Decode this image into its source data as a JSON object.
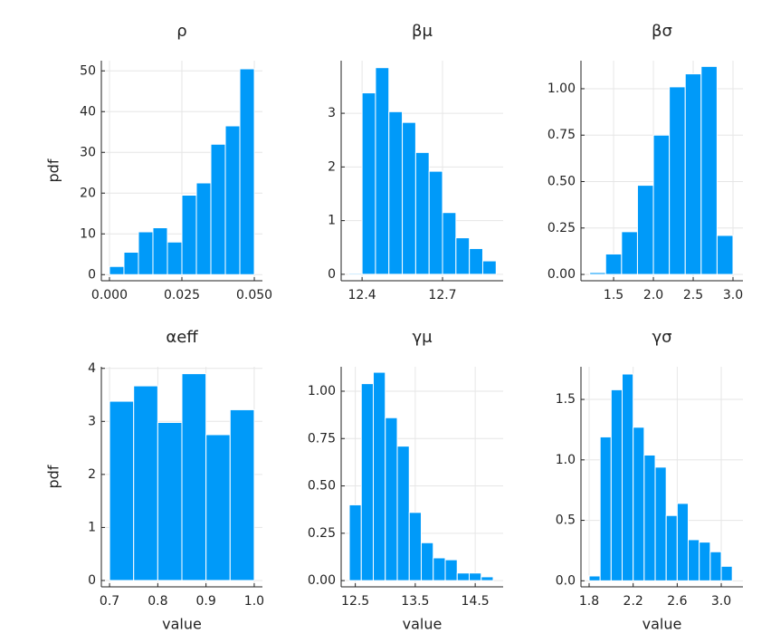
{
  "chart_data": [
    {
      "type": "histogram",
      "title": "ρ",
      "ylabel": "pdf",
      "color": "#009af9",
      "grid": true,
      "bins": [
        0.0,
        0.005,
        0.01,
        0.015,
        0.02,
        0.025,
        0.03,
        0.035,
        0.04,
        0.045,
        0.05
      ],
      "values": [
        2,
        5.5,
        10.5,
        11.5,
        8,
        19.5,
        22.5,
        32,
        36.5,
        50.5
      ],
      "xlim": [
        -0.0028,
        0.0528
      ],
      "ylim": [
        -1.5,
        52.5
      ],
      "xticks": [
        {
          "value": 0,
          "label": "0.000"
        },
        {
          "value": 0.025,
          "label": "0.025"
        },
        {
          "value": 0.05,
          "label": "0.050"
        }
      ],
      "yticks": [
        0,
        10,
        20,
        30,
        40,
        50
      ]
    },
    {
      "type": "histogram",
      "title": "βμ",
      "color": "#009af9",
      "grid": true,
      "bins": [
        12.35,
        12.4,
        12.45,
        12.5,
        12.55,
        12.6,
        12.65,
        12.7,
        12.75,
        12.8,
        12.85,
        12.9
      ],
      "values": [
        0.02,
        3.38,
        3.85,
        3.03,
        2.83,
        2.27,
        1.92,
        1.15,
        0.68,
        0.48,
        0.25,
        0.02
      ],
      "xlim": [
        12.322,
        12.926
      ],
      "ylim": [
        -0.12,
        3.98
      ],
      "xticks": [
        12.4,
        12.7
      ],
      "yticks": [
        0,
        1,
        2,
        3
      ]
    },
    {
      "type": "histogram",
      "title": "βσ",
      "color": "#009af9",
      "grid": true,
      "bins": [
        1.2,
        1.4,
        1.6,
        1.8,
        2.0,
        2.2,
        2.4,
        2.6,
        2.8,
        3.0
      ],
      "values": [
        0.01,
        0.11,
        0.23,
        0.48,
        0.75,
        1.01,
        1.08,
        1.12,
        0.21
      ],
      "xlim": [
        1.09,
        3.125
      ],
      "ylim": [
        -0.034,
        1.151
      ],
      "xticks": [
        1.5,
        {
          "value": 2,
          "label": "2.0"
        },
        2.5,
        {
          "value": 3,
          "label": "3.0"
        }
      ],
      "yticks": [
        {
          "value": 0,
          "label": "0.00"
        },
        0.25,
        {
          "value": 0.5,
          "label": "0.50"
        },
        0.75,
        {
          "value": 1,
          "label": "1.00"
        }
      ]
    },
    {
      "type": "histogram",
      "title": "αeff",
      "ylabel": "pdf",
      "xlabel": "value",
      "color": "#009af9",
      "grid": true,
      "bins": [
        0.7,
        0.75,
        0.8,
        0.85,
        0.9,
        0.95,
        1.0
      ],
      "values": [
        3.38,
        3.67,
        2.98,
        3.9,
        2.75,
        3.22
      ],
      "xlim": [
        0.683,
        1.017
      ],
      "ylim": [
        -0.12,
        4.03
      ],
      "xticks": [
        0.7,
        0.8,
        0.9,
        {
          "value": 1,
          "label": "1.0"
        }
      ],
      "yticks": [
        0,
        1,
        2,
        3,
        4
      ]
    },
    {
      "type": "histogram",
      "title": "γμ",
      "xlabel": "value",
      "color": "#009af9",
      "grid": true,
      "bins": [
        12.4,
        12.6,
        12.8,
        13.0,
        13.2,
        13.4,
        13.6,
        13.8,
        14.0,
        14.2,
        14.4,
        14.6,
        14.8
      ],
      "values": [
        0.4,
        1.04,
        1.1,
        0.86,
        0.71,
        0.36,
        0.2,
        0.12,
        0.11,
        0.04,
        0.04,
        0.02
      ],
      "xlim": [
        12.264,
        14.966
      ],
      "ylim": [
        -0.033,
        1.129
      ],
      "xticks": [
        12.5,
        13.5,
        14.5
      ],
      "yticks": [
        {
          "value": 0,
          "label": "0.00"
        },
        0.25,
        {
          "value": 0.5,
          "label": "0.50"
        },
        0.75,
        {
          "value": 1,
          "label": "1.00"
        }
      ]
    },
    {
      "type": "histogram",
      "title": "γσ",
      "xlabel": "value",
      "color": "#009af9",
      "grid": true,
      "bins": [
        1.8,
        1.9,
        2.0,
        2.1,
        2.2,
        2.3,
        2.4,
        2.5,
        2.6,
        2.7,
        2.8,
        2.9,
        3.0,
        3.1
      ],
      "values": [
        0.04,
        1.19,
        1.58,
        1.71,
        1.27,
        1.04,
        0.94,
        0.54,
        0.64,
        0.34,
        0.32,
        0.24,
        0.12
      ],
      "xlim": [
        1.726,
        3.197
      ],
      "ylim": [
        -0.05,
        1.77
      ],
      "xticks": [
        1.8,
        2.2,
        2.6,
        {
          "value": 3,
          "label": "3.0"
        }
      ],
      "yticks": [
        {
          "value": 0,
          "label": "0.0"
        },
        0.5,
        {
          "value": 1,
          "label": "1.0"
        },
        1.5
      ]
    }
  ]
}
